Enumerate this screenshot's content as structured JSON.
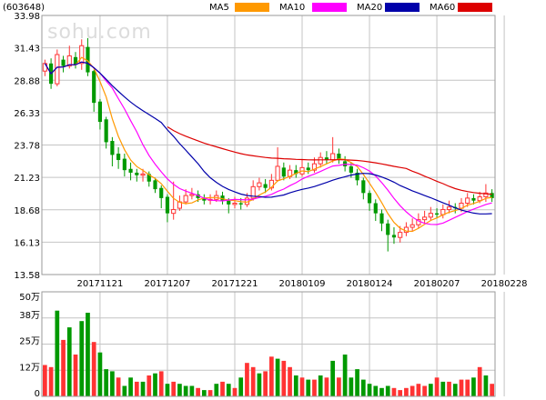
{
  "chart_data": {
    "type": "candlestick",
    "code_label": "(603648)",
    "watermark": "sohu.com",
    "legend": [
      {
        "name": "MA5",
        "color": "#ff9900"
      },
      {
        "name": "MA10",
        "color": "#ff00ff"
      },
      {
        "name": "MA20",
        "color": "#0000aa"
      },
      {
        "name": "MA60",
        "color": "#dd0000"
      }
    ],
    "colors": {
      "up": "#ff3333",
      "down": "#009900",
      "grid": "#c4c4c4",
      "border": "#9a9a9a"
    },
    "price_axis": {
      "ticks": [
        "33.98",
        "31.43",
        "28.88",
        "26.33",
        "23.78",
        "21.23",
        "18.68",
        "16.13",
        "13.58"
      ],
      "min": 13.58,
      "max": 33.98
    },
    "volume_axis": {
      "ticks": [
        "50万",
        "38万",
        "25万",
        "12万",
        "0"
      ],
      "max": 50
    },
    "x_labels": [
      "20171121",
      "20171207",
      "20171221",
      "20180109",
      "20180124",
      "20180207",
      "20180228"
    ],
    "x_label_index": [
      9,
      20,
      31,
      42,
      53,
      64,
      75
    ],
    "candles": [
      [
        29.6,
        30.2,
        30.5,
        29.2
      ],
      [
        30.2,
        28.6,
        30.6,
        28.2
      ],
      [
        28.6,
        30.9,
        31.3,
        28.4
      ],
      [
        30.5,
        30.0,
        30.8,
        29.5
      ],
      [
        30.0,
        30.8,
        31.6,
        29.8
      ],
      [
        30.7,
        30.1,
        31.1,
        29.8
      ],
      [
        30.2,
        31.6,
        32.1,
        29.7
      ],
      [
        31.5,
        29.5,
        32.2,
        29.2
      ],
      [
        29.6,
        27.1,
        29.7,
        26.4
      ],
      [
        27.2,
        25.6,
        27.4,
        25.0
      ],
      [
        25.8,
        24.0,
        26.0,
        23.5
      ],
      [
        24.1,
        23.0,
        24.4,
        22.1
      ],
      [
        23.1,
        22.6,
        23.6,
        21.9
      ],
      [
        22.7,
        21.8,
        23.1,
        21.3
      ],
      [
        21.9,
        21.6,
        22.4,
        21.0
      ],
      [
        21.6,
        21.4,
        21.9,
        20.9
      ],
      [
        21.4,
        21.5,
        21.9,
        20.9
      ],
      [
        21.5,
        20.9,
        21.7,
        20.5
      ],
      [
        21.0,
        20.3,
        21.2,
        20.0
      ],
      [
        20.4,
        19.6,
        20.6,
        18.8
      ],
      [
        19.7,
        18.4,
        19.9,
        17.7
      ],
      [
        18.4,
        18.7,
        20.9,
        17.9
      ],
      [
        18.8,
        19.3,
        19.8,
        18.6
      ],
      [
        19.3,
        19.8,
        20.3,
        19.1
      ],
      [
        19.8,
        19.9,
        20.4,
        19.5
      ],
      [
        19.9,
        19.6,
        20.2,
        19.3
      ],
      [
        19.6,
        19.4,
        19.9,
        19.1
      ],
      [
        19.5,
        19.5,
        19.9,
        19.1
      ],
      [
        19.5,
        19.8,
        20.2,
        19.3
      ],
      [
        19.8,
        19.4,
        20.1,
        19.1
      ],
      [
        19.4,
        19.1,
        19.6,
        18.4
      ],
      [
        19.1,
        19.2,
        19.7,
        18.8
      ],
      [
        19.2,
        19.1,
        19.6,
        18.7
      ],
      [
        19.1,
        19.6,
        20.0,
        18.9
      ],
      [
        19.6,
        20.5,
        21.0,
        19.4
      ],
      [
        20.5,
        20.8,
        21.2,
        20.2
      ],
      [
        20.7,
        20.4,
        21.1,
        20.0
      ],
      [
        20.4,
        21.0,
        21.5,
        20.2
      ],
      [
        21.0,
        22.1,
        23.6,
        20.9
      ],
      [
        22.0,
        21.3,
        22.4,
        21.0
      ],
      [
        21.3,
        21.8,
        22.2,
        21.1
      ],
      [
        21.8,
        21.5,
        22.2,
        21.2
      ],
      [
        21.5,
        22.0,
        22.6,
        21.3
      ],
      [
        22.0,
        21.8,
        22.4,
        21.5
      ],
      [
        21.8,
        22.3,
        22.8,
        21.6
      ],
      [
        22.3,
        22.8,
        23.2,
        22.0
      ],
      [
        22.8,
        22.6,
        23.3,
        22.3
      ],
      [
        22.6,
        23.1,
        24.4,
        22.4
      ],
      [
        23.1,
        22.6,
        23.5,
        22.3
      ],
      [
        22.5,
        22.1,
        22.9,
        21.7
      ],
      [
        22.1,
        21.6,
        22.4,
        21.2
      ],
      [
        21.6,
        21.0,
        21.9,
        20.6
      ],
      [
        21.0,
        20.0,
        21.2,
        19.5
      ],
      [
        20.0,
        19.2,
        20.2,
        18.6
      ],
      [
        19.2,
        18.4,
        19.5,
        17.8
      ],
      [
        18.4,
        17.6,
        18.7,
        17.0
      ],
      [
        17.6,
        16.7,
        17.9,
        15.4
      ],
      [
        16.7,
        16.5,
        17.3,
        16.0
      ],
      [
        16.5,
        16.9,
        17.4,
        16.1
      ],
      [
        16.9,
        17.3,
        17.7,
        16.6
      ],
      [
        17.3,
        17.5,
        18.0,
        17.0
      ],
      [
        17.5,
        17.9,
        18.4,
        17.2
      ],
      [
        17.9,
        18.1,
        18.6,
        17.6
      ],
      [
        18.1,
        18.4,
        18.9,
        17.8
      ],
      [
        18.4,
        18.3,
        18.8,
        18.0
      ],
      [
        18.3,
        18.7,
        19.1,
        18.0
      ],
      [
        18.7,
        18.9,
        19.4,
        18.4
      ],
      [
        18.9,
        18.8,
        19.2,
        18.4
      ],
      [
        18.8,
        19.2,
        19.6,
        18.5
      ],
      [
        19.2,
        19.6,
        20.0,
        18.9
      ],
      [
        19.6,
        19.4,
        19.9,
        19.1
      ],
      [
        19.4,
        19.7,
        20.1,
        19.2
      ],
      [
        19.7,
        20.0,
        20.7,
        19.3
      ],
      [
        20.0,
        19.6,
        20.3,
        19.3
      ]
    ],
    "volume": [
      [
        15,
        1
      ],
      [
        14,
        1
      ],
      [
        41,
        0
      ],
      [
        27,
        1
      ],
      [
        33,
        0
      ],
      [
        20,
        1
      ],
      [
        36,
        0
      ],
      [
        40,
        0
      ],
      [
        26,
        1
      ],
      [
        21,
        0
      ],
      [
        13,
        0
      ],
      [
        12,
        0
      ],
      [
        9,
        1
      ],
      [
        5,
        0
      ],
      [
        9,
        0
      ],
      [
        7,
        1
      ],
      [
        7,
        0
      ],
      [
        10,
        1
      ],
      [
        11,
        0
      ],
      [
        12,
        1
      ],
      [
        6,
        0
      ],
      [
        7,
        1
      ],
      [
        6,
        0
      ],
      [
        5,
        0
      ],
      [
        5,
        0
      ],
      [
        4,
        1
      ],
      [
        3,
        0
      ],
      [
        3,
        1
      ],
      [
        6,
        0
      ],
      [
        7,
        1
      ],
      [
        6,
        0
      ],
      [
        4,
        1
      ],
      [
        9,
        0
      ],
      [
        16,
        1
      ],
      [
        14,
        1
      ],
      [
        11,
        0
      ],
      [
        12,
        1
      ],
      [
        19,
        1
      ],
      [
        18,
        0
      ],
      [
        17,
        1
      ],
      [
        14,
        1
      ],
      [
        10,
        0
      ],
      [
        9,
        1
      ],
      [
        8,
        0
      ],
      [
        8,
        1
      ],
      [
        10,
        0
      ],
      [
        9,
        1
      ],
      [
        17,
        0
      ],
      [
        9,
        1
      ],
      [
        20,
        0
      ],
      [
        9,
        0
      ],
      [
        13,
        0
      ],
      [
        8,
        0
      ],
      [
        6,
        0
      ],
      [
        5,
        0
      ],
      [
        4,
        0
      ],
      [
        5,
        0
      ],
      [
        4,
        1
      ],
      [
        3,
        1
      ],
      [
        4,
        1
      ],
      [
        5,
        1
      ],
      [
        6,
        1
      ],
      [
        5,
        1
      ],
      [
        6,
        0
      ],
      [
        9,
        1
      ],
      [
        7,
        0
      ],
      [
        7,
        1
      ],
      [
        6,
        0
      ],
      [
        8,
        1
      ],
      [
        8,
        1
      ],
      [
        9,
        0
      ],
      [
        14,
        1
      ],
      [
        10,
        0
      ],
      [
        6,
        1
      ]
    ]
  }
}
